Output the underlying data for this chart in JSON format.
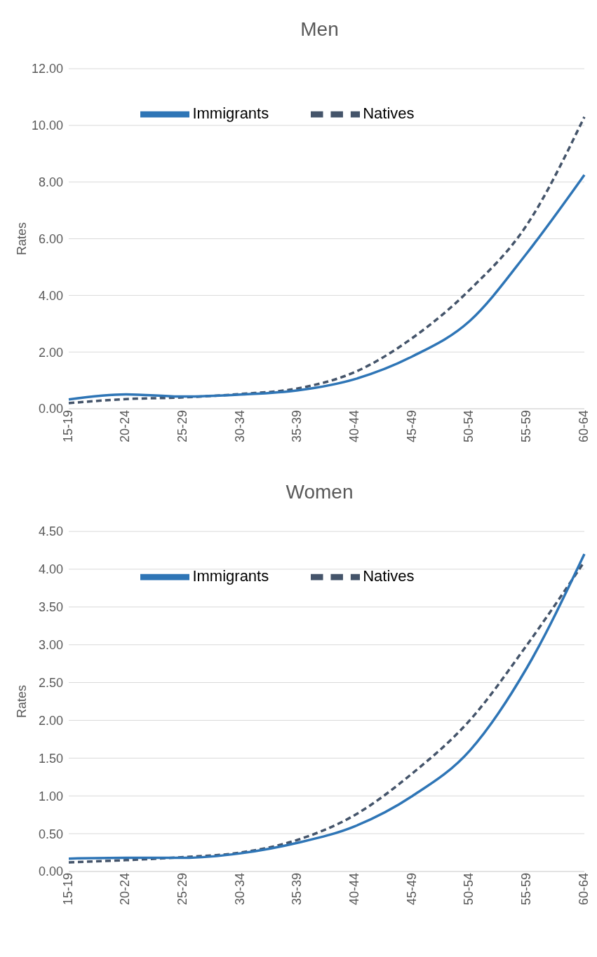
{
  "chart_data": [
    {
      "type": "line",
      "title": "Men",
      "ylabel": "Rates",
      "categories": [
        "15-19",
        "20-24",
        "25-29",
        "30-34",
        "35-39",
        "40-44",
        "45-49",
        "50-54",
        "55-59",
        "60-64"
      ],
      "series": [
        {
          "name": "Natives",
          "color": "#44546a",
          "line_style": "dashed",
          "values": [
            0.2,
            0.34,
            0.4,
            0.52,
            0.72,
            1.3,
            2.5,
            4.2,
            6.5,
            10.3
          ]
        },
        {
          "name": "Immigrants",
          "color": "#2e75b6",
          "line_style": "solid",
          "values": [
            0.33,
            0.51,
            0.43,
            0.5,
            0.65,
            1.05,
            1.85,
            3.1,
            5.5,
            8.25
          ]
        }
      ],
      "ylim": [
        0,
        12
      ],
      "yticks": [
        {
          "value": 0,
          "label": "0.00"
        },
        {
          "value": 2,
          "label": "2.00"
        },
        {
          "value": 4,
          "label": "4.00"
        },
        {
          "value": 6,
          "label": "6.00"
        },
        {
          "value": 8,
          "label": "8.00"
        },
        {
          "value": 10,
          "label": "10.00"
        },
        {
          "value": 12,
          "label": "12.00"
        }
      ],
      "grid": "y",
      "legend": "top",
      "marker": "none"
    },
    {
      "type": "line",
      "title": "Women",
      "ylabel": "Rates",
      "categories": [
        "15-19",
        "20-24",
        "25-29",
        "30-34",
        "35-39",
        "40-44",
        "45-49",
        "50-54",
        "55-59",
        "60-64"
      ],
      "series": [
        {
          "name": "Natives",
          "color": "#44546a",
          "line_style": "dashed",
          "values": [
            0.12,
            0.15,
            0.19,
            0.25,
            0.42,
            0.75,
            1.3,
            2.0,
            3.0,
            4.1
          ]
        },
        {
          "name": "Immigrants",
          "color": "#2e75b6",
          "line_style": "solid",
          "values": [
            0.17,
            0.18,
            0.18,
            0.24,
            0.38,
            0.6,
            1.0,
            1.6,
            2.7,
            4.2
          ]
        }
      ],
      "ylim": [
        0,
        4.5
      ],
      "yticks": [
        {
          "value": 0,
          "label": "0.00"
        },
        {
          "value": 0.5,
          "label": "0.50"
        },
        {
          "value": 1,
          "label": "1.00"
        },
        {
          "value": 1.5,
          "label": "1.50"
        },
        {
          "value": 2,
          "label": "2.00"
        },
        {
          "value": 2.5,
          "label": "2.50"
        },
        {
          "value": 3,
          "label": "3.00"
        },
        {
          "value": 3.5,
          "label": "3.50"
        },
        {
          "value": 4,
          "label": "4.00"
        },
        {
          "value": 4.5,
          "label": "4.50"
        }
      ],
      "grid": "y",
      "legend": "top",
      "marker": "none"
    }
  ]
}
